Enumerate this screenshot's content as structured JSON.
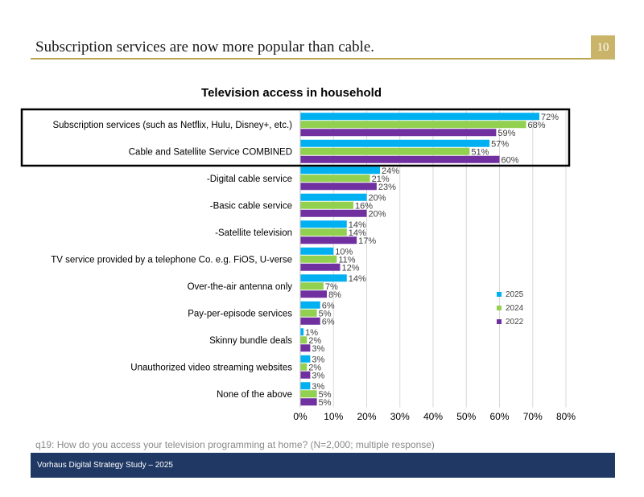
{
  "slide": {
    "title": "Subscription services are now more popular than cable.",
    "page_number": "10",
    "footnote": "q19: How do you access your television programming at home? (N=2,000; multiple response)",
    "footer": "Vorhaus Digital Strategy Study – 2025"
  },
  "chart_data": {
    "type": "bar",
    "orientation": "horizontal",
    "title": "Television access in household",
    "categories": [
      "Subscription services (such as Netflix, Hulu, Disney+, etc.)",
      "Cable and Satellite Service COMBINED",
      "-Digital cable service",
      "-Basic cable service",
      "-Satellite television",
      "TV service provided by a telephone Co. e.g. FiOS, U-verse",
      "Over-the-air antenna only",
      "Pay-per-episode services",
      "Skinny bundle deals",
      "Unauthorized video streaming websites",
      "None of the above"
    ],
    "series": [
      {
        "name": "2025",
        "color": "#00b0f0",
        "values": [
          72,
          57,
          24,
          20,
          14,
          10,
          14,
          6,
          1,
          3,
          3
        ]
      },
      {
        "name": "2024",
        "color": "#92d050",
        "values": [
          68,
          51,
          21,
          16,
          14,
          11,
          7,
          5,
          2,
          2,
          5
        ]
      },
      {
        "name": "2022",
        "color": "#7030a0",
        "values": [
          59,
          60,
          23,
          20,
          17,
          12,
          8,
          6,
          3,
          3,
          5
        ]
      }
    ],
    "value_suffix": "%",
    "xlim": [
      0,
      80
    ],
    "xticks": [
      "0%",
      "10%",
      "20%",
      "30%",
      "40%",
      "50%",
      "60%",
      "70%",
      "80%"
    ],
    "grid": true,
    "legend_position": "right",
    "highlighted_categories": [
      0,
      1
    ]
  }
}
